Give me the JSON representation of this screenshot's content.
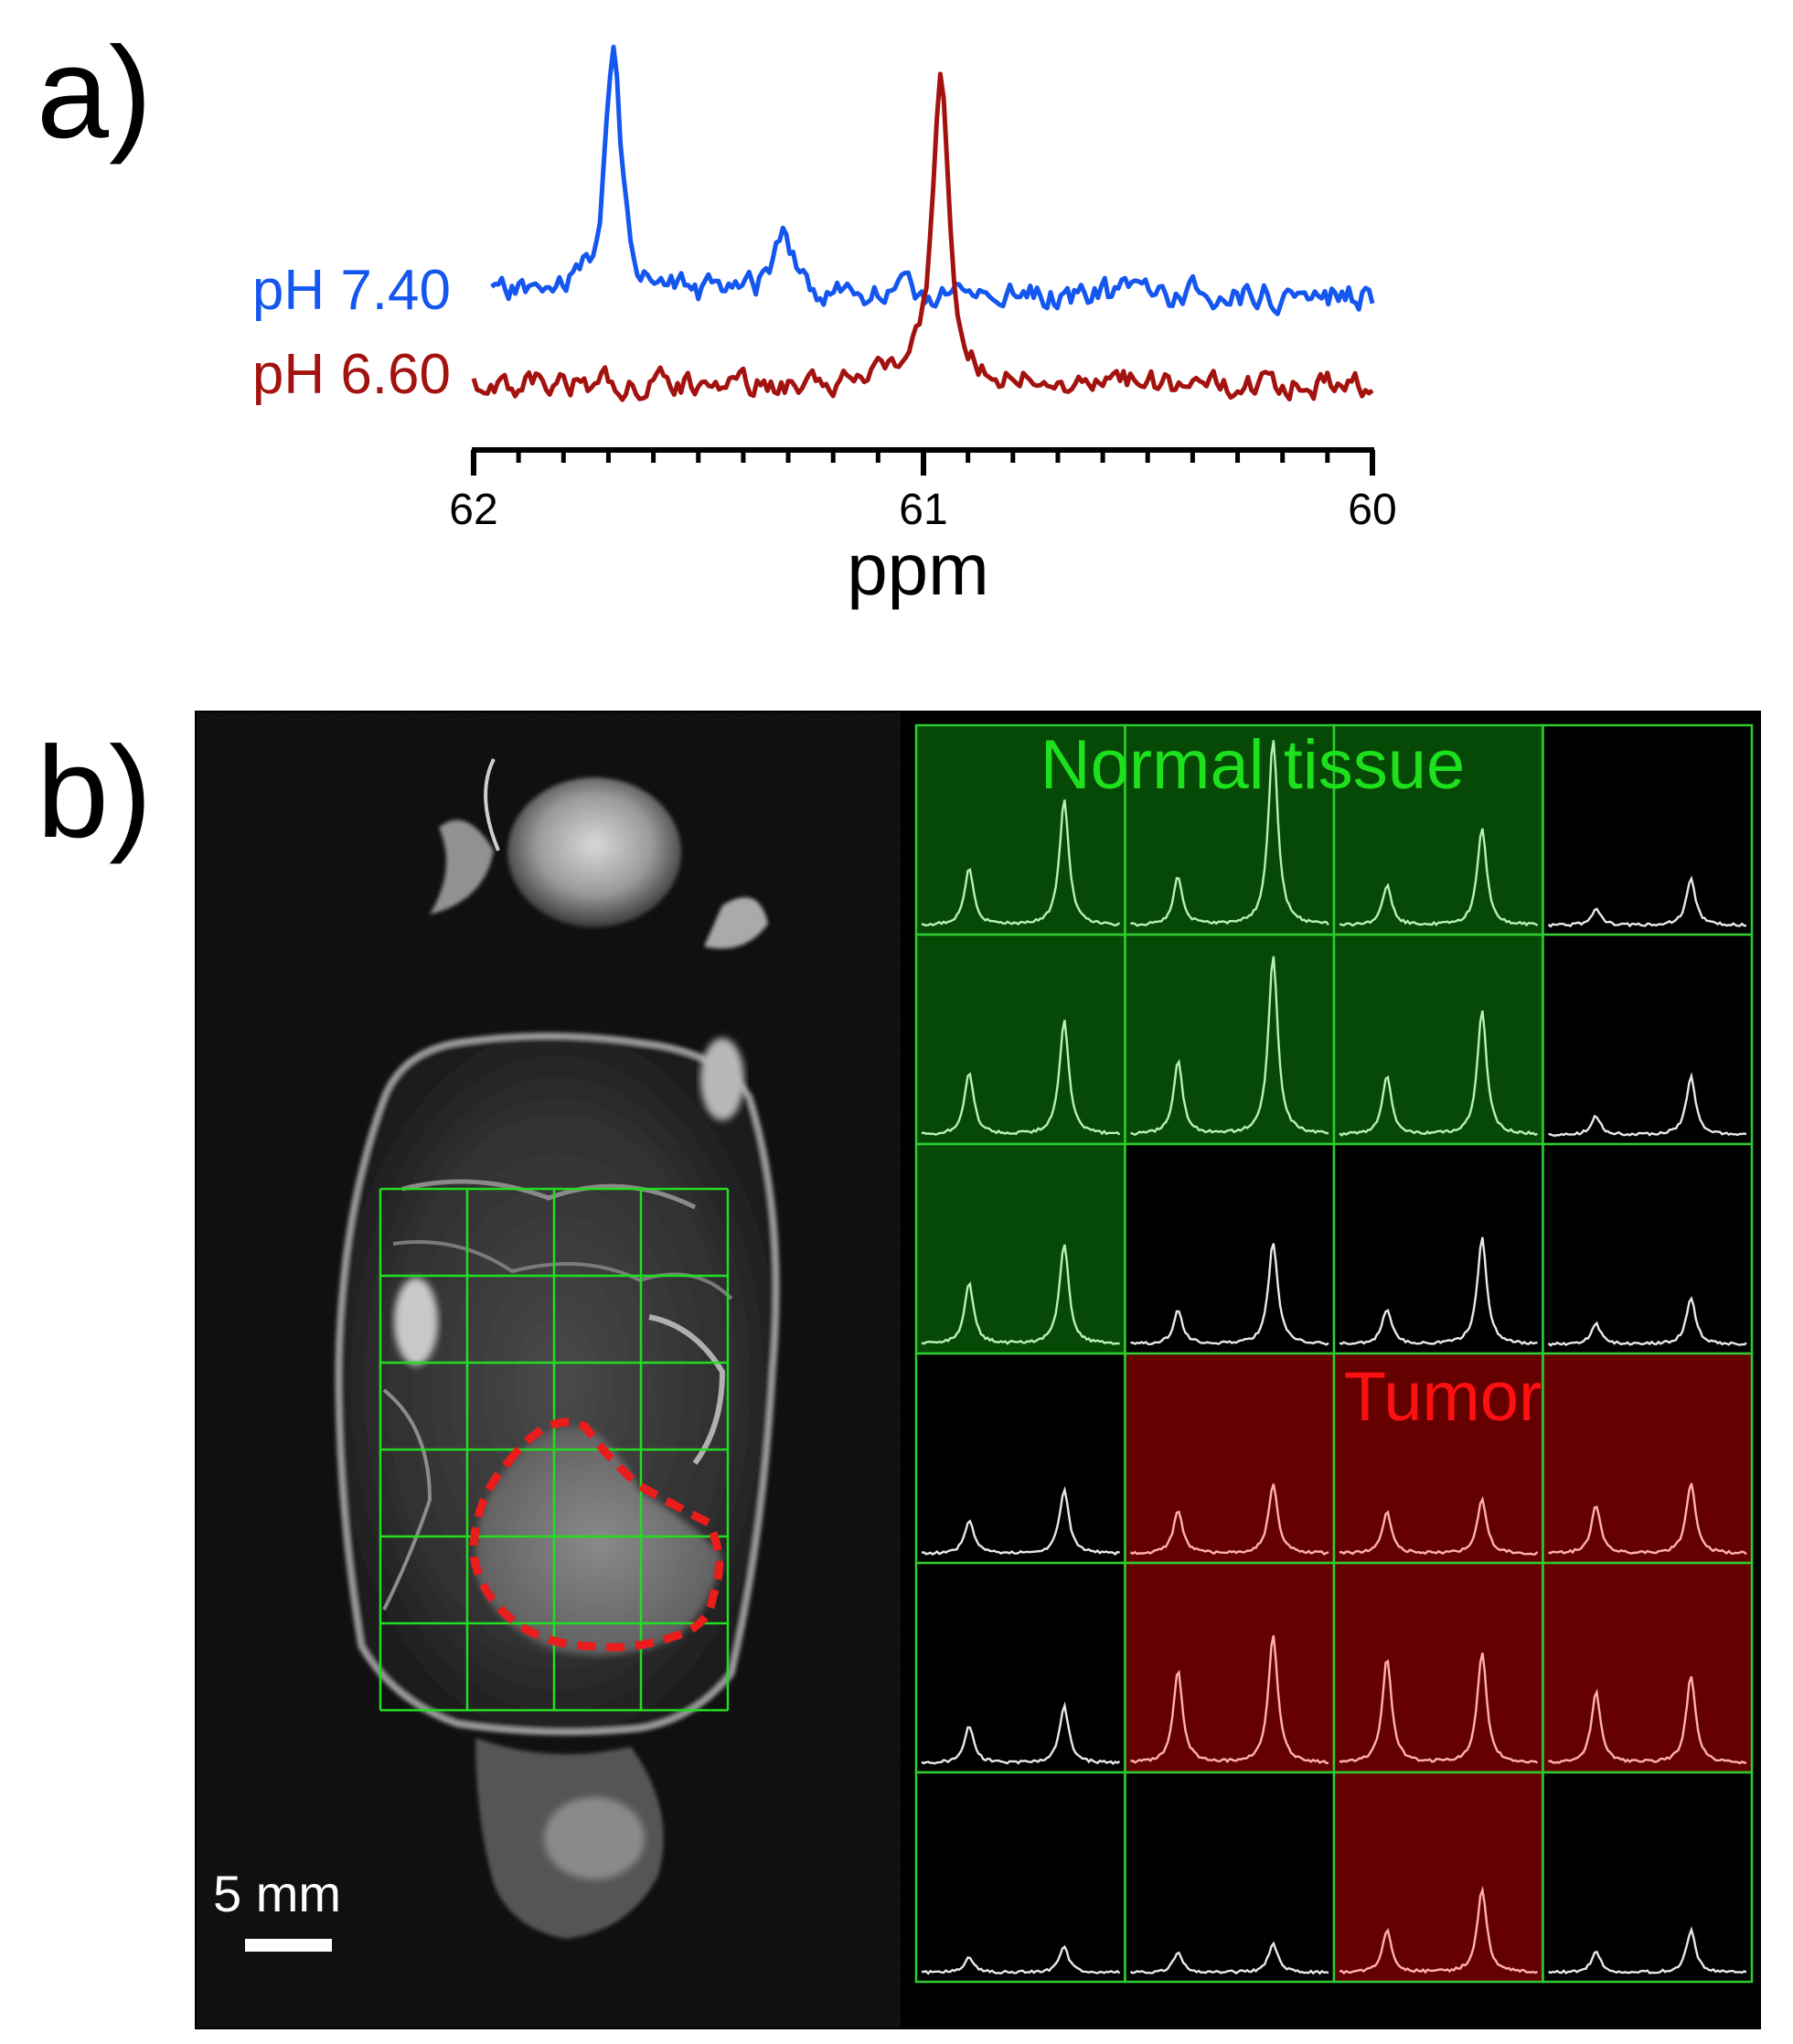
{
  "panel_labels": {
    "a": "a)",
    "b": "b)"
  },
  "chart_data": [
    {
      "type": "line",
      "panel": "a",
      "xlabel": "ppm",
      "xlim": [
        62,
        60
      ],
      "x_ticks": [
        "62",
        "61",
        "60"
      ],
      "series": [
        {
          "name": "pH 7.40",
          "color": "#1456f0",
          "peaks": [
            {
              "ppm": 61.69,
              "height": 1.0
            },
            {
              "ppm": 61.31,
              "height": 0.3
            }
          ]
        },
        {
          "name": "pH 6.60",
          "color": "#a3120e",
          "peaks": [
            {
              "ppm": 60.96,
              "height": 1.0
            }
          ]
        }
      ]
    },
    {
      "type": "heatmap",
      "panel": "b",
      "description_free_labels": true,
      "regions": [
        {
          "label": "Normal tissue",
          "color": "#1de11d"
        },
        {
          "label": "Tumor",
          "color": "#ff1010"
        }
      ],
      "rows": 6,
      "cols": 4,
      "cell_class": [
        [
          "normal",
          "normal",
          "normal",
          "none"
        ],
        [
          "normal",
          "normal",
          "normal",
          "none"
        ],
        [
          "normal",
          "none",
          "none",
          "none"
        ],
        [
          "none",
          "tumor",
          "tumor",
          "tumor"
        ],
        [
          "none",
          "tumor",
          "tumor",
          "tumor"
        ],
        [
          "none",
          "none",
          "tumor",
          "none"
        ]
      ],
      "peak_heights": [
        [
          [
            0.27,
            0.6
          ],
          [
            0.23,
            0.89
          ],
          [
            0.19,
            0.47
          ],
          [
            0.08,
            0.22
          ]
        ],
        [
          [
            0.3,
            0.55
          ],
          [
            0.35,
            0.86
          ],
          [
            0.28,
            0.59
          ],
          [
            0.09,
            0.28
          ]
        ],
        [
          [
            0.29,
            0.48
          ],
          [
            0.16,
            0.49
          ],
          [
            0.17,
            0.51
          ],
          [
            0.1,
            0.22
          ]
        ],
        [
          [
            0.16,
            0.31
          ],
          [
            0.21,
            0.33
          ],
          [
            0.2,
            0.26
          ],
          [
            0.23,
            0.34
          ]
        ],
        [
          [
            0.18,
            0.27
          ],
          [
            0.44,
            0.61
          ],
          [
            0.5,
            0.53
          ],
          [
            0.34,
            0.42
          ]
        ],
        [
          [
            0.07,
            0.12
          ],
          [
            0.1,
            0.14
          ],
          [
            0.2,
            0.4
          ],
          [
            0.1,
            0.2
          ]
        ]
      ],
      "scale_bar_label": "5 mm"
    }
  ]
}
